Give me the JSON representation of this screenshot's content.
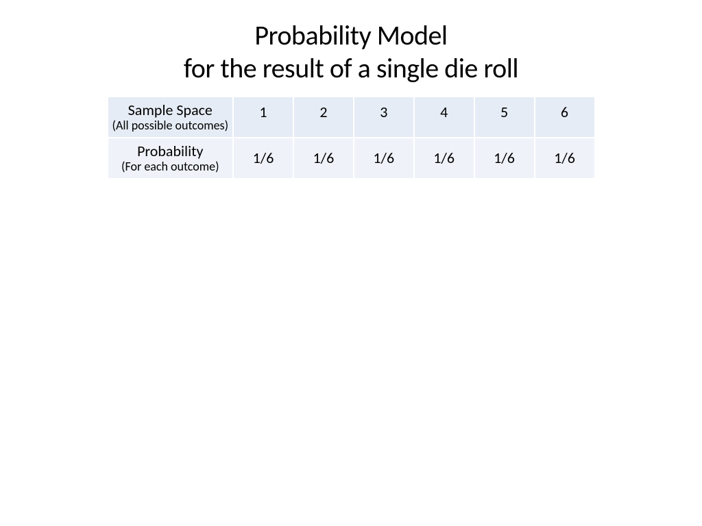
{
  "title": {
    "line1": "Probability Model",
    "line2": "for the result of a single die roll"
  },
  "table": {
    "type": "table",
    "background_color": "#ffffff",
    "row1_bg": "#e6ecf5",
    "row2_bg": "#eff3f9",
    "text_color": "#000000",
    "header_main_fontsize": 22,
    "header_sub_fontsize": 18,
    "value_fontsize": 22,
    "header_col_width": 185,
    "value_col_width": 88,
    "row1": {
      "header_main": "Sample Space",
      "header_sub": "(All possible outcomes)",
      "values": [
        "1",
        "2",
        "3",
        "4",
        "5",
        "6"
      ]
    },
    "row2": {
      "header_main": "Probability",
      "header_sub": "(For each outcome)",
      "values": [
        "1/6",
        "1/6",
        "1/6",
        "1/6",
        "1/6",
        "1/6"
      ]
    }
  }
}
